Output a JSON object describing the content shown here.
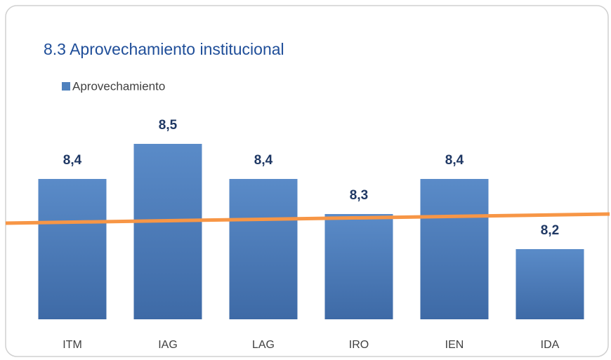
{
  "chart_data": {
    "type": "bar",
    "title": "8.3 Aprovechamiento institucional",
    "series": [
      {
        "name": "Aprovechamiento",
        "color": "#4f81bd",
        "values": [
          8.4,
          8.5,
          8.4,
          8.3,
          8.4,
          8.2
        ],
        "value_labels": [
          "8,4",
          "8,5",
          "8,4",
          "8,3",
          "8,4",
          "8,2"
        ]
      }
    ],
    "categories": [
      "ITM",
      "IAG",
      "LAG",
      "IRO",
      "IEN",
      "IDA"
    ],
    "ylim": [
      8,
      8.6
    ]
  }
}
